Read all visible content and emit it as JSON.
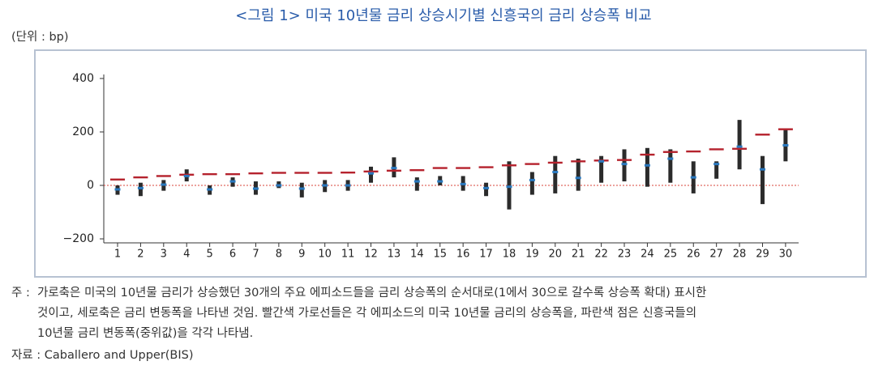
{
  "chart_data": {
    "type": "episode-range",
    "title": "<그림 1> 미국 10년물 금리 상승시기별 신흥국의 금리 상승폭 비교",
    "unit": "(단위 : bp)",
    "categories": [
      "1",
      "2",
      "3",
      "4",
      "5",
      "6",
      "7",
      "8",
      "9",
      "10",
      "11",
      "12",
      "13",
      "14",
      "15",
      "16",
      "17",
      "18",
      "19",
      "20",
      "21",
      "22",
      "23",
      "24",
      "25",
      "26",
      "27",
      "28",
      "29",
      "30"
    ],
    "series": [
      {
        "color": "#b5222d",
        "values": [
          22,
          30,
          35,
          40,
          42,
          42,
          45,
          47,
          47,
          47,
          48,
          52,
          55,
          57,
          65,
          65,
          68,
          75,
          80,
          85,
          90,
          93,
          95,
          115,
          125,
          127,
          135,
          137,
          190,
          210
        ]
      },
      {
        "color": "#2a78be",
        "values": [
          -15,
          -10,
          3,
          35,
          -15,
          15,
          -12,
          0,
          -12,
          0,
          0,
          45,
          65,
          15,
          15,
          5,
          -10,
          -5,
          20,
          50,
          28,
          90,
          80,
          75,
          100,
          30,
          80,
          145,
          60,
          150
        ]
      }
    ],
    "ranges": {
      "color": "#2b2b2b",
      "low": [
        -35,
        -40,
        -20,
        15,
        -35,
        -5,
        -35,
        -10,
        -45,
        -25,
        -20,
        10,
        30,
        -20,
        0,
        -20,
        -40,
        -90,
        -35,
        -30,
        -20,
        10,
        15,
        -5,
        10,
        -30,
        25,
        60,
        -70,
        90
      ],
      "high": [
        0,
        10,
        20,
        60,
        0,
        30,
        15,
        15,
        10,
        20,
        20,
        70,
        105,
        30,
        35,
        35,
        10,
        90,
        50,
        110,
        100,
        110,
        135,
        140,
        135,
        90,
        90,
        245,
        110,
        210
      ]
    },
    "ylim": [
      -215,
      415
    ],
    "yticks": [
      {
        "value": -200,
        "label": "−200"
      },
      0,
      200,
      400
    ],
    "zero_line_color": "#d9453a",
    "notes": {
      "label": "주 :",
      "lines": [
        "가로축은 미국의 10년물 금리가 상승했던 30개의 주요 에피소드들을 금리 상승폭의 순서대로(1에서 30으로 갈수록 상승폭 확대) 표시한",
        "것이고, 세로축은 금리 변동폭을 나타낸 것임. 빨간색 가로선들은 각 에피소드의 미국 10년물 금리의 상승폭을, 파란색 점은 신흥국들의",
        "10년물 금리 변동폭(중위값)을 각각 나타냄."
      ]
    },
    "source": "자료 : Caballero and Upper(BIS)"
  }
}
